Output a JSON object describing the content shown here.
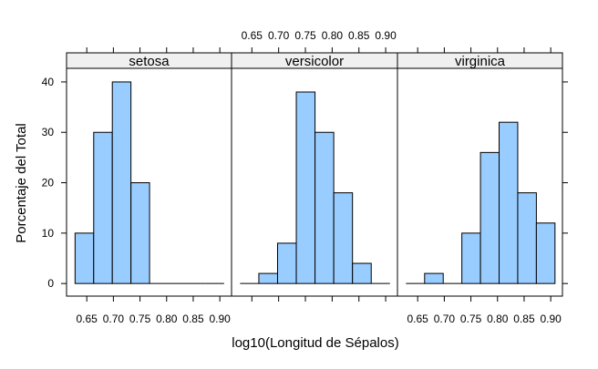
{
  "chart_data": {
    "type": "bar",
    "layout": "trellis histogram, 3 panels side by side",
    "xlabel": "log10(Longitud de Sépalos)",
    "ylabel": "Porcentaje del Total",
    "x_ticks": [
      "0.65",
      "0.70",
      "0.75",
      "0.80",
      "0.85",
      "0.90"
    ],
    "x_tick_values": [
      0.65,
      0.7,
      0.75,
      0.8,
      0.85,
      0.9
    ],
    "y_ticks": [
      "0",
      "10",
      "20",
      "30",
      "40"
    ],
    "y_tick_values": [
      0,
      10,
      20,
      30,
      40
    ],
    "xlim": [
      0.612,
      0.922
    ],
    "ylim": [
      -2.5,
      42.7
    ],
    "bar_color": "#99CCFF",
    "strip_color": "#F0F0F0",
    "panels": [
      {
        "name": "setosa",
        "bins": [
          {
            "x0": 0.628,
            "x1": 0.663,
            "value": 10
          },
          {
            "x0": 0.663,
            "x1": 0.698,
            "value": 30
          },
          {
            "x0": 0.698,
            "x1": 0.733,
            "value": 40
          },
          {
            "x0": 0.733,
            "x1": 0.768,
            "value": 20
          },
          {
            "x0": 0.768,
            "x1": 0.803,
            "value": 0
          },
          {
            "x0": 0.803,
            "x1": 0.838,
            "value": 0
          },
          {
            "x0": 0.838,
            "x1": 0.873,
            "value": 0
          },
          {
            "x0": 0.873,
            "x1": 0.908,
            "value": 0
          }
        ]
      },
      {
        "name": "versicolor",
        "bins": [
          {
            "x0": 0.628,
            "x1": 0.663,
            "value": 0
          },
          {
            "x0": 0.663,
            "x1": 0.698,
            "value": 2
          },
          {
            "x0": 0.698,
            "x1": 0.733,
            "value": 8
          },
          {
            "x0": 0.733,
            "x1": 0.768,
            "value": 38
          },
          {
            "x0": 0.768,
            "x1": 0.803,
            "value": 30
          },
          {
            "x0": 0.803,
            "x1": 0.838,
            "value": 18
          },
          {
            "x0": 0.838,
            "x1": 0.873,
            "value": 4
          },
          {
            "x0": 0.873,
            "x1": 0.908,
            "value": 0
          }
        ]
      },
      {
        "name": "virginica",
        "bins": [
          {
            "x0": 0.628,
            "x1": 0.663,
            "value": 0
          },
          {
            "x0": 0.663,
            "x1": 0.698,
            "value": 2
          },
          {
            "x0": 0.698,
            "x1": 0.733,
            "value": 0
          },
          {
            "x0": 0.733,
            "x1": 0.768,
            "value": 10
          },
          {
            "x0": 0.768,
            "x1": 0.803,
            "value": 26
          },
          {
            "x0": 0.803,
            "x1": 0.838,
            "value": 32
          },
          {
            "x0": 0.838,
            "x1": 0.873,
            "value": 18
          },
          {
            "x0": 0.873,
            "x1": 0.908,
            "value": 12
          }
        ]
      }
    ]
  }
}
